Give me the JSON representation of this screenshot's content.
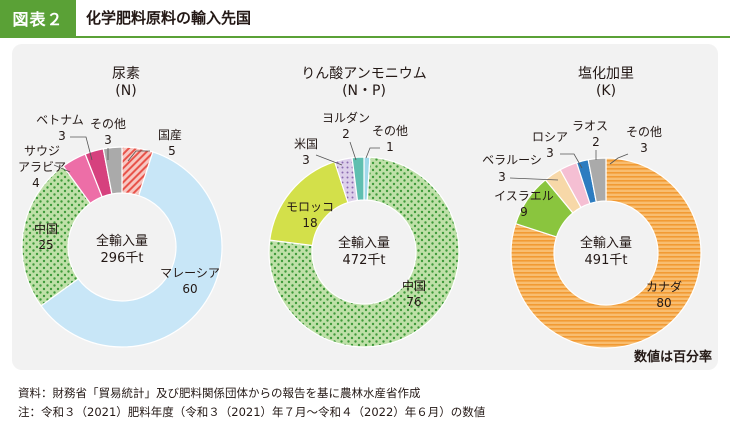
{
  "header": {
    "badge": "図表２",
    "title": "化学肥料原料の輸入先国"
  },
  "center_label": "全輸入量",
  "percent_note": "数値は百分率",
  "footnotes": [
    "資料：財務省「貿易統計」及び肥料関係団体からの報告を基に農林水産省作成",
    "注：令和３（2021）肥料年度（令和３（2021）年７月～令和４（2022）年６月）の数値"
  ],
  "chart_data": [
    {
      "type": "pie",
      "title": [
        "尿素",
        "(N)"
      ],
      "total": "296千t",
      "slices": [
        {
          "name": "国産",
          "value": 5,
          "color": "#e8534a",
          "pattern": "hatch"
        },
        {
          "name": "マレーシア",
          "value": 60,
          "color": "#c8e6f7",
          "pattern": "solid"
        },
        {
          "name": "中国",
          "value": 25,
          "color": "#5fb446",
          "pattern": "dots"
        },
        {
          "name": "サウジアラビア",
          "value": 4,
          "color": "#ed6ea7",
          "pattern": "solid"
        },
        {
          "name": "ベトナム",
          "value": 3,
          "color": "#d6417e",
          "pattern": "solid"
        },
        {
          "name": "その他",
          "value": 3,
          "color": "#aaaaaa",
          "pattern": "solid"
        }
      ]
    },
    {
      "type": "pie",
      "title": [
        "りん酸アンモニウム",
        "(N・P)"
      ],
      "total": "472千t",
      "slices": [
        {
          "name": "その他",
          "value": 1,
          "color": "#9fd9ea",
          "pattern": "solid"
        },
        {
          "name": "中国",
          "value": 76,
          "color": "#5fb446",
          "pattern": "dots"
        },
        {
          "name": "モロッコ",
          "value": 18,
          "color": "#d3e04a",
          "pattern": "solid"
        },
        {
          "name": "米国",
          "value": 3,
          "color": "#b69ac9",
          "pattern": "dots"
        },
        {
          "name": "ヨルダン",
          "value": 2,
          "color": "#5fbfb0",
          "pattern": "solid"
        }
      ]
    },
    {
      "type": "pie",
      "title": [
        "塩化加里",
        "(K)"
      ],
      "total": "491千t",
      "slices": [
        {
          "name": "カナダ",
          "value": 80,
          "color": "#f5a94c",
          "pattern": "lines"
        },
        {
          "name": "イスラエル",
          "value": 9,
          "color": "#8ac53e",
          "pattern": "solid"
        },
        {
          "name": "ベラルーシ",
          "value": 3,
          "color": "#f7d8a8",
          "pattern": "solid"
        },
        {
          "name": "ロシア",
          "value": 3,
          "color": "#f5bfd3",
          "pattern": "solid"
        },
        {
          "name": "ラオス",
          "value": 2,
          "color": "#2d7cc0",
          "pattern": "solid"
        },
        {
          "name": "その他",
          "value": 3,
          "color": "#aaaaaa",
          "pattern": "solid"
        }
      ]
    }
  ]
}
